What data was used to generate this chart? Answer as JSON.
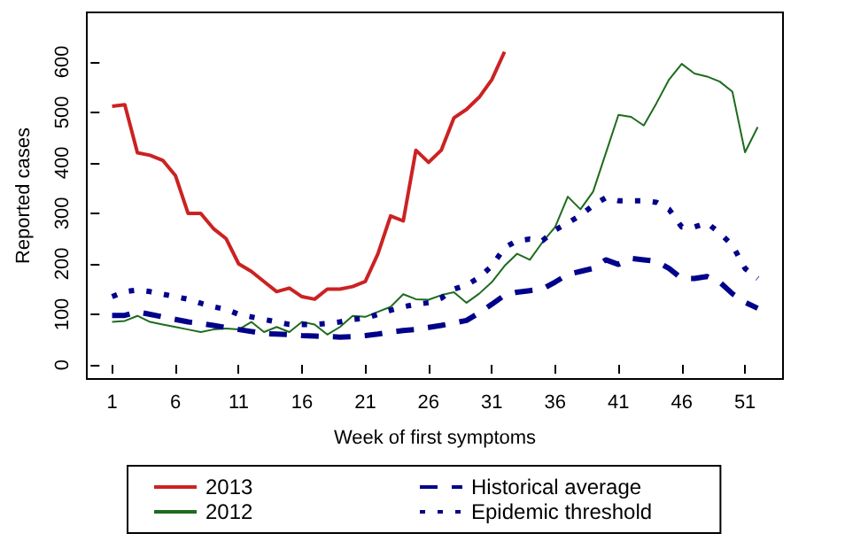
{
  "chart_data": {
    "type": "line",
    "xlabel": "Week of first symptoms",
    "ylabel": "Reported cases",
    "x": [
      1,
      2,
      3,
      4,
      5,
      6,
      7,
      8,
      9,
      10,
      11,
      12,
      13,
      14,
      15,
      16,
      17,
      18,
      19,
      20,
      21,
      22,
      23,
      24,
      25,
      26,
      27,
      28,
      29,
      30,
      31,
      32,
      33,
      34,
      35,
      36,
      37,
      38,
      39,
      40,
      41,
      42,
      43,
      44,
      45,
      46,
      47,
      48,
      49,
      50,
      51,
      52
    ],
    "xlim": [
      -1,
      54
    ],
    "xticks": [
      1,
      6,
      11,
      16,
      21,
      26,
      31,
      36,
      41,
      46,
      51
    ],
    "ylim": [
      -28,
      698
    ],
    "yticks": [
      0,
      100,
      200,
      300,
      400,
      500,
      600
    ],
    "grid": false,
    "legend": "bottom",
    "marker": "none",
    "series": [
      {
        "name": "2013",
        "color": "#cc2222",
        "line_style": "solid",
        "values": [
          512,
          515,
          420,
          415,
          405,
          375,
          300,
          300,
          270,
          250,
          200,
          185,
          165,
          145,
          152,
          135,
          130,
          150,
          150,
          155,
          165,
          220,
          295,
          285,
          425,
          401,
          425,
          489,
          506,
          530,
          565,
          620,
          null,
          null,
          null,
          null,
          null,
          null,
          null,
          null,
          null,
          null,
          null,
          null,
          null,
          null,
          null,
          null,
          null,
          null,
          null,
          null
        ]
      },
      {
        "name": "2012",
        "color": "#1e6b1e",
        "line_style": "solid",
        "values": [
          85,
          87,
          97,
          85,
          80,
          75,
          70,
          65,
          70,
          72,
          70,
          85,
          65,
          75,
          65,
          85,
          80,
          60,
          75,
          97,
          95,
          105,
          115,
          140,
          130,
          129,
          138,
          144,
          123,
          141,
          164,
          196,
          220,
          208,
          243,
          273,
          333,
          308,
          343,
          419,
          495,
          491,
          474,
          518,
          565,
          596,
          577,
          571,
          561,
          541,
          421,
          471
        ]
      },
      {
        "name": "Historical average",
        "color": "#00008b",
        "line_style": "dashed",
        "values": [
          98,
          98,
          105,
          100,
          95,
          90,
          85,
          82,
          78,
          74,
          70,
          66,
          62,
          61,
          60,
          58,
          57,
          56,
          55,
          56,
          58,
          61,
          65,
          68,
          70,
          74,
          78,
          83,
          88,
          103,
          120,
          138,
          144,
          147,
          150,
          164,
          179,
          185,
          191,
          208,
          199,
          211,
          208,
          205,
          191,
          171,
          171,
          175,
          164,
          141,
          124,
          112
        ]
      },
      {
        "name": "Epidemic threshold",
        "color": "#00008b",
        "line_style": "dotted",
        "values": [
          135,
          145,
          148,
          145,
          140,
          135,
          130,
          122,
          115,
          110,
          100,
          95,
          90,
          85,
          80,
          80,
          80,
          82,
          85,
          90,
          92,
          100,
          108,
          115,
          120,
          123,
          132,
          150,
          158,
          173,
          196,
          232,
          246,
          249,
          246,
          267,
          281,
          296,
          316,
          331,
          325,
          325,
          325,
          322,
          308,
          273,
          273,
          281,
          261,
          237,
          191,
          171
        ]
      }
    ]
  }
}
